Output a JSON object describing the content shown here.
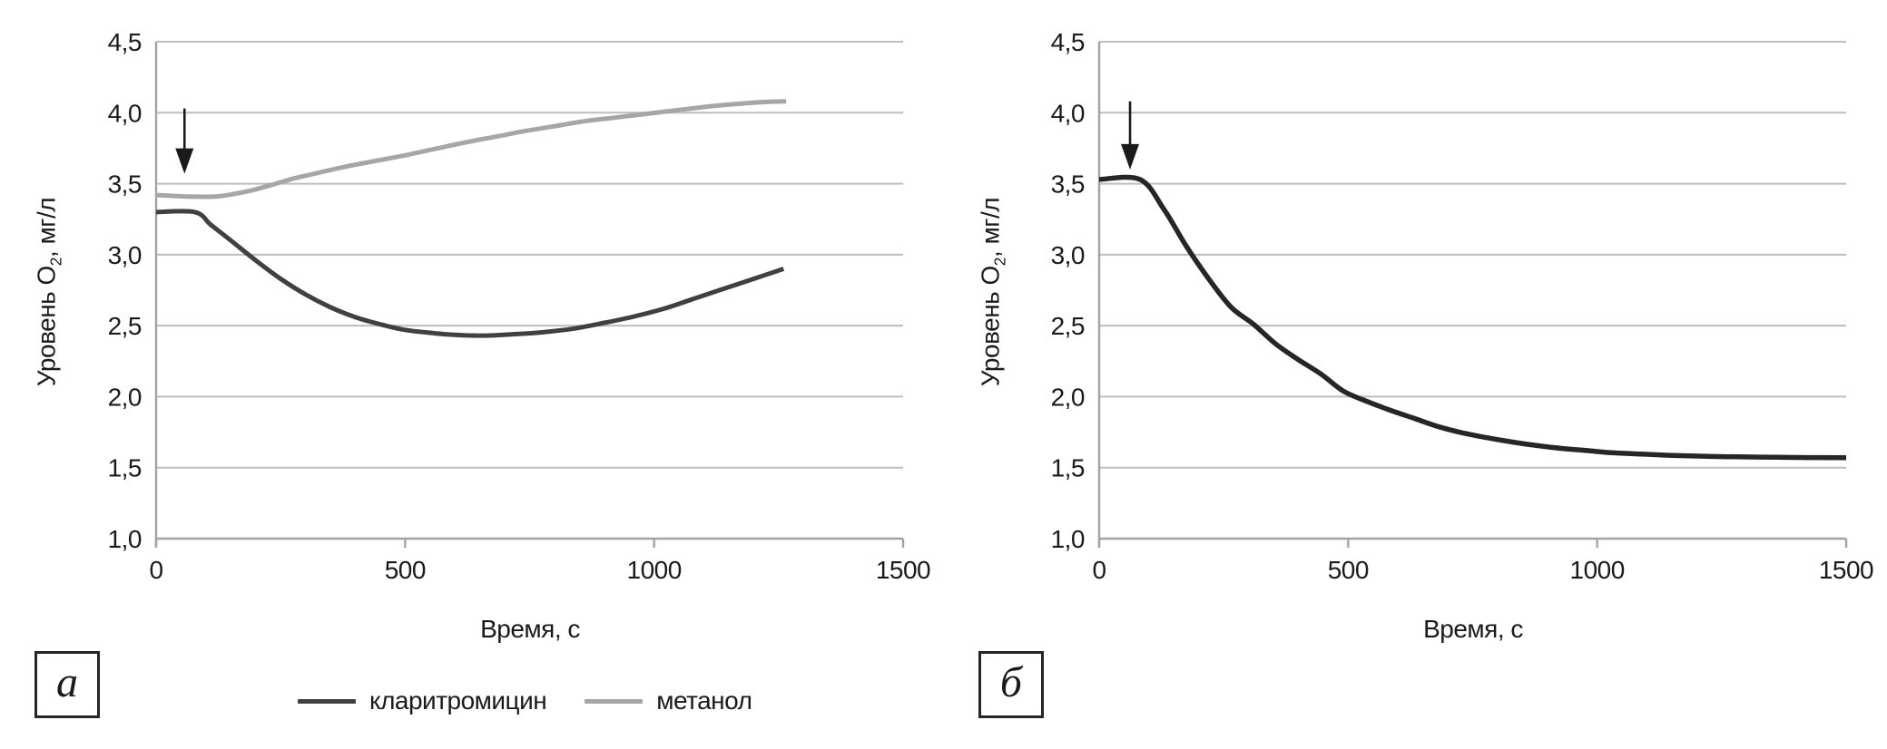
{
  "figure": {
    "panel_a_label": "а",
    "panel_b_label": "б",
    "colors": {
      "text": "#1a1a1a",
      "axis": "#a3a3a3",
      "grid": "#bdbdbd",
      "arrow": "#1a1a1a",
      "series_dark": "#404040",
      "series_light": "#a6a6a6",
      "series_black": "#262626"
    }
  },
  "chart_data": [
    {
      "type": "line",
      "panel_label": "а",
      "xlabel": "Время, с",
      "ylabel": "Уровень О2, мг/л",
      "ylabel_parts": {
        "pre": "Уровень О",
        "sub": "2",
        "post": ", мг/л"
      },
      "xlim": [
        0,
        1500
      ],
      "ylim": [
        1.0,
        4.5
      ],
      "x_ticks": [
        0,
        500,
        1000,
        1500
      ],
      "x_tick_labels": [
        "0",
        "500",
        "1000",
        "1500"
      ],
      "y_ticks": [
        4.5,
        4.0,
        3.5,
        3.0,
        2.5,
        2.0,
        1.5,
        1.0
      ],
      "y_tick_labels": [
        "4,5",
        "4,0",
        "3,5",
        "3,0",
        "2,5",
        "2,0",
        "1,5",
        "1,0"
      ],
      "grid": true,
      "legend_position": "bottom",
      "annotation_arrow": {
        "x": 57,
        "y_from": 4.03,
        "y_to": 3.57
      },
      "series": [
        {
          "name": "кларитромицин",
          "color": "#404040",
          "points": [
            [
              0,
              3.3
            ],
            [
              78,
              3.3
            ],
            [
              110,
              3.21
            ],
            [
              150,
              3.1
            ],
            [
              200,
              2.96
            ],
            [
              250,
              2.83
            ],
            [
              300,
              2.72
            ],
            [
              350,
              2.63
            ],
            [
              400,
              2.56
            ],
            [
              450,
              2.51
            ],
            [
              500,
              2.47
            ],
            [
              550,
              2.45
            ],
            [
              600,
              2.435
            ],
            [
              660,
              2.43
            ],
            [
              720,
              2.44
            ],
            [
              780,
              2.455
            ],
            [
              840,
              2.48
            ],
            [
              900,
              2.52
            ],
            [
              960,
              2.565
            ],
            [
              1020,
              2.62
            ],
            [
              1080,
              2.69
            ],
            [
              1140,
              2.76
            ],
            [
              1200,
              2.83
            ],
            [
              1260,
              2.9
            ]
          ]
        },
        {
          "name": "метанол",
          "color": "#a6a6a6",
          "points": [
            [
              0,
              3.42
            ],
            [
              60,
              3.41
            ],
            [
              120,
              3.41
            ],
            [
              160,
              3.43
            ],
            [
              200,
              3.46
            ],
            [
              240,
              3.5
            ],
            [
              280,
              3.54
            ],
            [
              330,
              3.58
            ],
            [
              380,
              3.62
            ],
            [
              440,
              3.66
            ],
            [
              500,
              3.7
            ],
            [
              560,
              3.745
            ],
            [
              620,
              3.79
            ],
            [
              680,
              3.83
            ],
            [
              740,
              3.87
            ],
            [
              800,
              3.905
            ],
            [
              860,
              3.94
            ],
            [
              920,
              3.965
            ],
            [
              980,
              3.99
            ],
            [
              1040,
              4.015
            ],
            [
              1100,
              4.04
            ],
            [
              1160,
              4.06
            ],
            [
              1220,
              4.075
            ],
            [
              1265,
              4.08
            ]
          ]
        }
      ]
    },
    {
      "type": "line",
      "panel_label": "б",
      "xlabel": "Время, с",
      "ylabel": "Уровень О2, мг/л",
      "ylabel_parts": {
        "pre": "Уровень О",
        "sub": "2",
        "post": ", мг/л"
      },
      "xlim": [
        0,
        1500
      ],
      "ylim": [
        1.0,
        4.5
      ],
      "x_ticks": [
        0,
        500,
        1000,
        1500
      ],
      "x_tick_labels": [
        "0",
        "500",
        "1000",
        "1500"
      ],
      "y_ticks": [
        4.5,
        4.0,
        3.5,
        3.0,
        2.5,
        2.0,
        1.5,
        1.0
      ],
      "y_tick_labels": [
        "4,5",
        "4,0",
        "3,5",
        "3,0",
        "2,5",
        "2,0",
        "1,5",
        "1,0"
      ],
      "grid": true,
      "legend_position": "none",
      "annotation_arrow": {
        "x": 62,
        "y_from": 4.08,
        "y_to": 3.6
      },
      "series": [
        {
          "name": "кларитромицин",
          "color": "#262626",
          "points": [
            [
              0,
              3.53
            ],
            [
              82,
              3.53
            ],
            [
              130,
              3.32
            ],
            [
              175,
              3.06
            ],
            [
              220,
              2.83
            ],
            [
              265,
              2.63
            ],
            [
              310,
              2.51
            ],
            [
              355,
              2.37
            ],
            [
              400,
              2.26
            ],
            [
              445,
              2.16
            ],
            [
              490,
              2.04
            ],
            [
              535,
              1.97
            ],
            [
              580,
              1.91
            ],
            [
              630,
              1.85
            ],
            [
              680,
              1.79
            ],
            [
              730,
              1.745
            ],
            [
              780,
              1.71
            ],
            [
              830,
              1.68
            ],
            [
              880,
              1.655
            ],
            [
              930,
              1.635
            ],
            [
              980,
              1.62
            ],
            [
              1030,
              1.605
            ],
            [
              1090,
              1.595
            ],
            [
              1160,
              1.585
            ],
            [
              1240,
              1.578
            ],
            [
              1330,
              1.574
            ],
            [
              1420,
              1.571
            ],
            [
              1500,
              1.57
            ]
          ]
        }
      ]
    }
  ]
}
